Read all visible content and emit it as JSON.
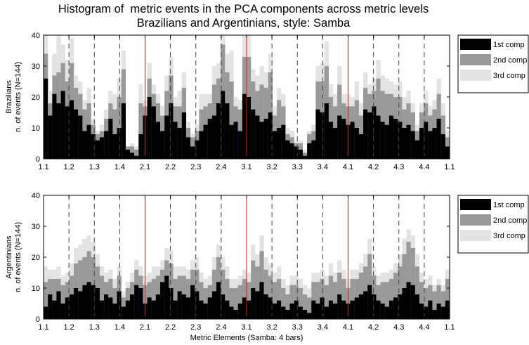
{
  "figure": {
    "title_line1": "Histogram of  metric events in the PCA components across metric levels",
    "title_line2": "Brazilians and Argentinians, style: Samba",
    "xlabel": "Metric Elements (Samba: 4 bars)"
  },
  "chart_data": [
    {
      "type": "bar",
      "stacked": true,
      "title": "Histogram of  metric events in the PCA components across metric levels",
      "subtitle": "Brazilians and Argentinians, style: Samba",
      "group_label": "Brazilians",
      "ylabel": "n. of events (N=144)",
      "xlabel": "",
      "ylim": [
        0,
        40
      ],
      "yticks": [
        0,
        10,
        20,
        30,
        40
      ],
      "xtick_labels": [
        "1.1",
        "1.2",
        "1.3",
        "1.4",
        "2.1",
        "2.2",
        "2.3",
        "2.4",
        "3.1",
        "3.2",
        "3.3",
        "3.4",
        "4.1",
        "4.2",
        "4.3",
        "4.4",
        "1.1"
      ],
      "dashed_lines_at_ticks": true,
      "solid_red_lines_at": [
        "2.1",
        "3.1",
        "4.1"
      ],
      "legend": {
        "position": "right",
        "entries": [
          "1st comp",
          "2nd comp",
          "3rd comp"
        ]
      },
      "colors": {
        "1st comp": "#000000",
        "2nd comp": "#999999",
        "3rd comp": "#e3e3e3",
        "dashed": "#444444",
        "bar_line": "#cc2200"
      },
      "series": [
        {
          "name": "1st comp",
          "values": [
            26,
            14,
            21,
            18,
            22,
            17,
            19,
            16,
            14,
            9,
            11,
            8,
            6,
            7,
            9,
            13,
            8,
            10,
            18,
            3,
            2,
            1,
            8,
            14,
            20,
            17,
            12,
            9,
            14,
            18,
            12,
            10,
            15,
            7,
            4,
            6,
            9,
            11,
            13,
            14,
            18,
            22,
            18,
            11,
            12,
            9,
            21,
            20,
            16,
            14,
            12,
            13,
            15,
            9,
            10,
            11,
            6,
            5,
            4,
            3,
            1,
            5,
            6,
            16,
            15,
            18,
            12,
            10,
            14,
            13,
            11,
            12,
            10,
            8,
            16,
            15,
            17,
            14,
            12,
            11,
            14,
            13,
            12,
            10,
            11,
            9,
            6,
            10,
            12,
            9,
            10,
            13,
            8,
            4
          ]
        },
        {
          "name": "2nd comp",
          "values": [
            8,
            4,
            6,
            10,
            9,
            8,
            12,
            7,
            7,
            7,
            7,
            3,
            2,
            2,
            4,
            5,
            8,
            10,
            11,
            1,
            2,
            2,
            10,
            3,
            6,
            4,
            6,
            5,
            8,
            9,
            5,
            7,
            8,
            3,
            3,
            3,
            7,
            6,
            5,
            10,
            8,
            15,
            10,
            14,
            5,
            7,
            12,
            13,
            9,
            8,
            12,
            10,
            13,
            5,
            9,
            6,
            2,
            2,
            1,
            2,
            1,
            3,
            3,
            9,
            10,
            12,
            8,
            7,
            10,
            5,
            6,
            5,
            9,
            6,
            7,
            6,
            5,
            12,
            10,
            10,
            7,
            7,
            8,
            6,
            7,
            6,
            3,
            5,
            6,
            5,
            6,
            8,
            6,
            3
          ]
        },
        {
          "name": "3rd comp",
          "values": [
            7,
            4,
            7,
            12,
            6,
            7,
            8,
            4,
            4,
            3,
            5,
            2,
            1,
            2,
            3,
            4,
            5,
            6,
            6,
            0,
            1,
            1,
            6,
            2,
            5,
            3,
            3,
            3,
            5,
            6,
            3,
            5,
            5,
            2,
            1,
            2,
            5,
            4,
            3,
            6,
            5,
            7,
            6,
            10,
            3,
            3,
            9,
            8,
            4,
            5,
            6,
            5,
            6,
            3,
            4,
            4,
            2,
            2,
            1,
            1,
            1,
            1,
            2,
            5,
            6,
            8,
            4,
            4,
            6,
            3,
            4,
            3,
            6,
            4,
            5,
            3,
            4,
            6,
            5,
            5,
            4,
            4,
            5,
            4,
            4,
            3,
            2,
            3,
            4,
            3,
            3,
            5,
            4,
            2
          ]
        }
      ]
    },
    {
      "type": "bar",
      "stacked": true,
      "group_label": "Argentinians",
      "ylabel": "n. of events (N=144)",
      "xlabel": "Metric Elements (Samba: 4 bars)",
      "ylim": [
        0,
        40
      ],
      "yticks": [
        0,
        10,
        20,
        30,
        40
      ],
      "xtick_labels": [
        "1.1",
        "1.2",
        "1.3",
        "1.4",
        "2.1",
        "2.2",
        "2.3",
        "2.4",
        "3.1",
        "3.2",
        "3.3",
        "3.4",
        "4.1",
        "4.2",
        "4.3",
        "4.4",
        "1.1"
      ],
      "dashed_lines_at_ticks": true,
      "solid_red_lines_at": [
        "2.1",
        "3.1",
        "4.1"
      ],
      "legend": {
        "position": "right",
        "entries": [
          "1st comp",
          "2nd comp",
          "3rd comp"
        ]
      },
      "colors": {
        "1st comp": "#000000",
        "2nd comp": "#999999",
        "3rd comp": "#e3e3e3",
        "dashed": "#444444",
        "bar_line": "#cc2200"
      },
      "series": [
        {
          "name": "1st comp",
          "values": [
            4,
            8,
            6,
            9,
            5,
            7,
            8,
            10,
            9,
            11,
            12,
            11,
            10,
            6,
            8,
            7,
            5,
            9,
            4,
            6,
            8,
            11,
            10,
            5,
            7,
            6,
            8,
            12,
            14,
            10,
            6,
            9,
            8,
            7,
            11,
            9,
            6,
            5,
            7,
            9,
            12,
            8,
            6,
            4,
            3,
            5,
            7,
            6,
            10,
            9,
            12,
            8,
            7,
            5,
            6,
            4,
            3,
            5,
            6,
            4,
            3,
            2,
            6,
            5,
            7,
            4,
            6,
            5,
            8,
            6,
            5,
            6,
            7,
            8,
            9,
            11,
            8,
            6,
            5,
            4,
            6,
            7,
            8,
            10,
            12,
            11,
            8,
            5,
            4,
            6,
            3,
            5,
            4,
            6
          ]
        },
        {
          "name": "2nd comp",
          "values": [
            8,
            5,
            7,
            4,
            6,
            5,
            6,
            8,
            10,
            9,
            10,
            9,
            7,
            8,
            4,
            6,
            5,
            5,
            3,
            4,
            4,
            5,
            4,
            6,
            5,
            7,
            6,
            4,
            5,
            8,
            7,
            5,
            6,
            6,
            5,
            7,
            6,
            5,
            4,
            7,
            8,
            8,
            7,
            6,
            7,
            6,
            6,
            6,
            9,
            8,
            10,
            8,
            7,
            7,
            7,
            6,
            5,
            6,
            5,
            6,
            5,
            5,
            6,
            7,
            6,
            7,
            8,
            7,
            7,
            7,
            5,
            7,
            6,
            7,
            8,
            10,
            6,
            5,
            7,
            8,
            7,
            8,
            9,
            11,
            13,
            12,
            9,
            7,
            6,
            5,
            6,
            6,
            5,
            7
          ]
        },
        {
          "name": "3rd comp",
          "values": [
            5,
            3,
            3,
            4,
            3,
            3,
            4,
            5,
            5,
            6,
            5,
            5,
            4,
            3,
            3,
            3,
            3,
            3,
            2,
            2,
            3,
            3,
            3,
            3,
            3,
            4,
            3,
            3,
            4,
            4,
            4,
            3,
            3,
            3,
            3,
            4,
            3,
            3,
            3,
            4,
            4,
            4,
            4,
            3,
            3,
            3,
            3,
            3,
            5,
            4,
            5,
            4,
            4,
            3,
            4,
            3,
            3,
            3,
            3,
            3,
            3,
            3,
            3,
            3,
            3,
            3,
            4,
            3,
            4,
            3,
            3,
            3,
            3,
            3,
            4,
            5,
            3,
            3,
            3,
            3,
            3,
            3,
            4,
            5,
            4,
            4,
            4,
            3,
            3,
            3,
            2,
            2,
            2,
            3
          ]
        }
      ]
    }
  ]
}
